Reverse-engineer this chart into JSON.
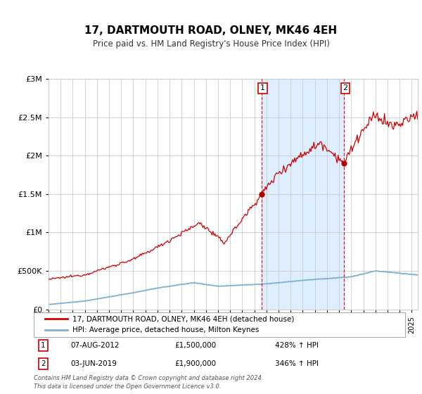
{
  "title": "17, DARTMOUTH ROAD, OLNEY, MK46 4EH",
  "subtitle": "Price paid vs. HM Land Registry's House Price Index (HPI)",
  "legend_line1": "17, DARTMOUTH ROAD, OLNEY, MK46 4EH (detached house)",
  "legend_line2": "HPI: Average price, detached house, Milton Keynes",
  "annotation1_date": "07-AUG-2012",
  "annotation1_price": "£1,500,000",
  "annotation1_hpi": "428% ↑ HPI",
  "annotation2_date": "03-JUN-2019",
  "annotation2_price": "£1,900,000",
  "annotation2_hpi": "346% ↑ HPI",
  "footer": "Contains HM Land Registry data © Crown copyright and database right 2024.\nThis data is licensed under the Open Government Licence v3.0.",
  "red_color": "#cc0000",
  "blue_color": "#7ab0d4",
  "shade_color": "#ddeeff",
  "vline_color": "#cc0000",
  "grid_color": "#cccccc",
  "ylim": [
    0,
    3000000
  ],
  "xlim_start": 1995.0,
  "xlim_end": 2025.5,
  "sale1_year": 2012.6,
  "sale1_price": 1500000,
  "sale2_year": 2019.42,
  "sale2_price": 1900000
}
